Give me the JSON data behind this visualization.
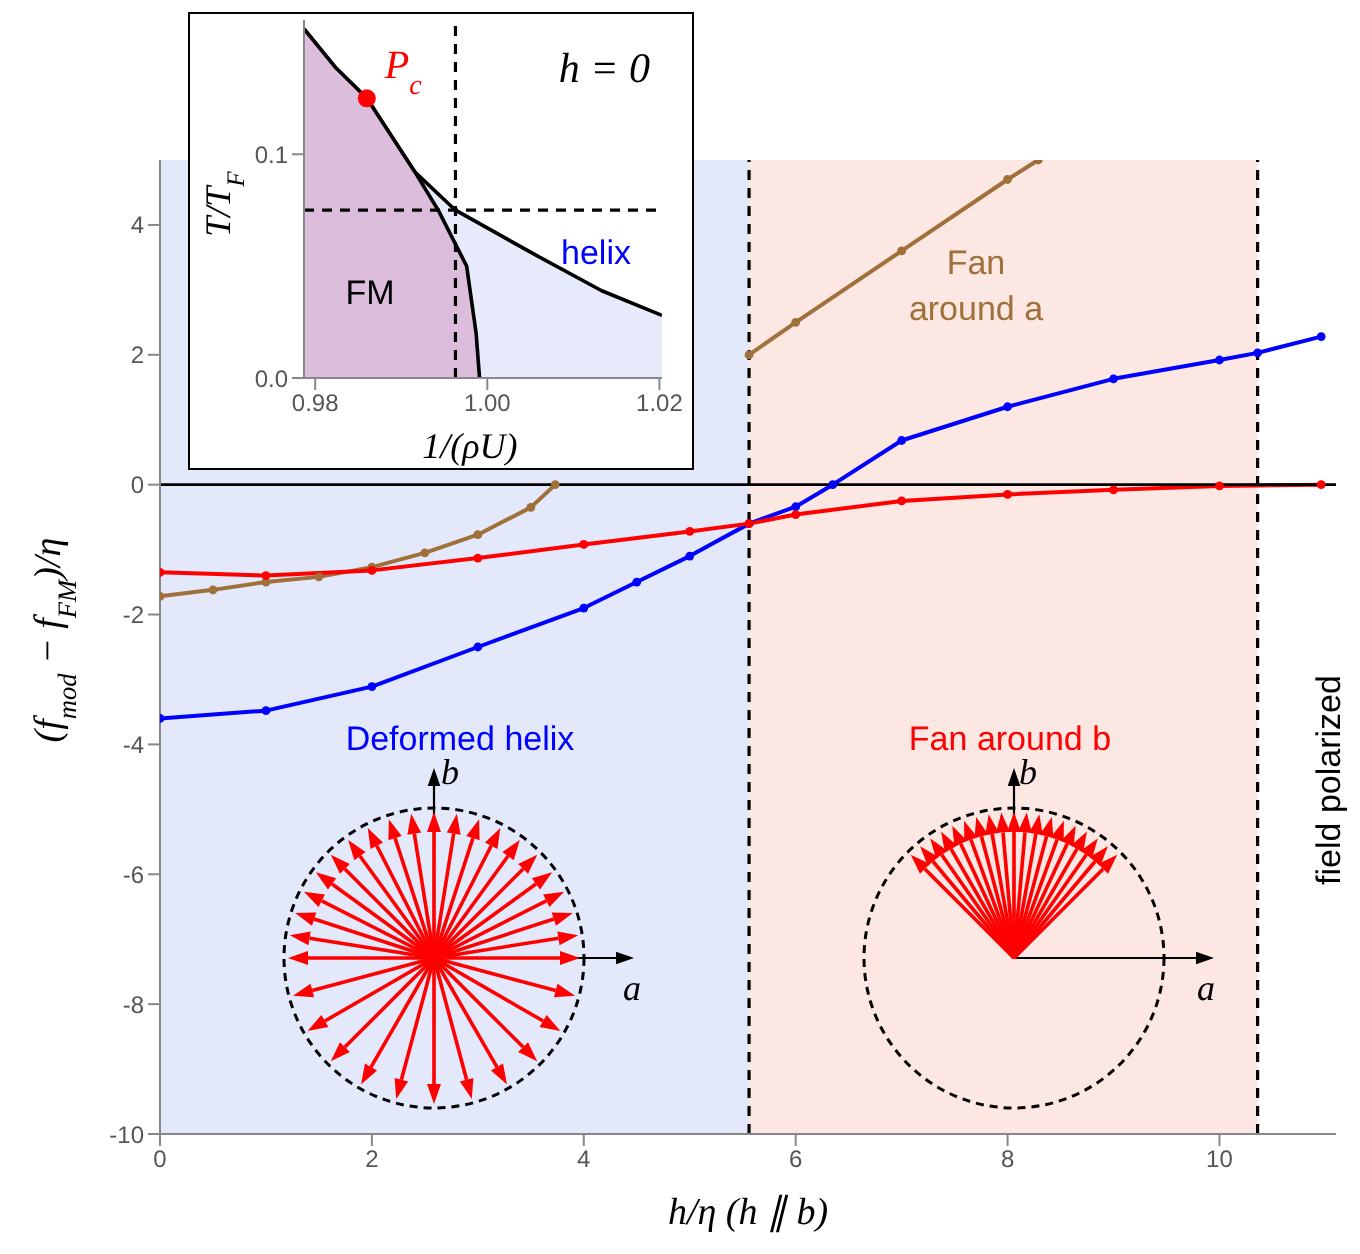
{
  "chart_data": [
    {
      "type": "line",
      "xlabel": "h/η (h ∥ b)",
      "ylabel": "(f$_{mod}$ − f$_{FM}$)/η",
      "xlim": [
        0,
        11.1
      ],
      "ylim": [
        -10,
        5
      ],
      "xticks": [
        0,
        2,
        4,
        6,
        8,
        10
      ],
      "yticks": [
        -10,
        -8,
        -6,
        -4,
        -2,
        0,
        2,
        4
      ],
      "grid": false,
      "legend": false,
      "marker": "circle",
      "series": [
        {
          "name": "Fan around a",
          "color": "#a0703a",
          "x": [
            0,
            0.5,
            1,
            1.5,
            2,
            2.5,
            3,
            3.5,
            3.73,
            4,
            4.5,
            5,
            5.56,
            6,
            7,
            8,
            8.29
          ],
          "values": [
            -1.72,
            -1.62,
            -1.5,
            -1.42,
            -1.27,
            -1.05,
            -0.77,
            -0.35,
            0,
            null,
            null,
            null,
            2.0,
            2.5,
            3.6,
            4.7,
            5
          ]
        },
        {
          "name": "Deformed helix",
          "color": "#0000ff",
          "x": [
            0,
            1,
            2,
            3,
            4,
            4.5,
            5,
            5.56,
            6,
            6.35,
            7,
            8,
            9,
            10,
            10.36,
            10.96
          ],
          "values": [
            -3.6,
            -3.48,
            -3.11,
            -2.5,
            -1.9,
            -1.5,
            -1.1,
            -0.6,
            -0.34,
            0,
            0.68,
            1.2,
            1.63,
            1.92,
            2.03,
            2.28
          ]
        },
        {
          "name": "Fan around b",
          "color": "#ff0000",
          "x": [
            0,
            1,
            2,
            3,
            4,
            5,
            5.56,
            6,
            7,
            8,
            9,
            10,
            10.96
          ],
          "values": [
            -1.35,
            -1.4,
            -1.32,
            -1.13,
            -0.92,
            -0.72,
            -0.6,
            -0.46,
            -0.25,
            -0.15,
            -0.08,
            -0.02,
            0
          ]
        }
      ],
      "bands": [
        {
          "axis": "x",
          "from": 0,
          "to": 5.56,
          "color": "#e3e8fb"
        },
        {
          "axis": "x",
          "from": 5.56,
          "to": 10.36,
          "color": "#fde7e3"
        }
      ],
      "ref_lines": [
        {
          "axis": "y",
          "value": 0,
          "color": "#000000",
          "line_style": "solid"
        },
        {
          "axis": "x",
          "value": 5.56,
          "color": "#000000",
          "line_style": "dashed"
        },
        {
          "axis": "x",
          "value": 10.36,
          "color": "#000000",
          "line_style": "dashed"
        }
      ],
      "annotations": [
        "field polarized",
        "b",
        "a",
        "b",
        "a"
      ]
    },
    {
      "type": "area",
      "xlabel": "1/(ρU)",
      "ylabel": "T/T$_{F}$",
      "xlim": [
        0.9787,
        1.0203
      ],
      "ylim": [
        0,
        0.16
      ],
      "xticks": [
        0.98,
        {
          "value": 1,
          "label": "1.00"
        },
        1.02
      ],
      "yticks": [
        {
          "value": 0,
          "label": "0.0"
        },
        {
          "value": 0.1,
          "label": "0.1"
        }
      ],
      "grid": false,
      "legend": false,
      "series": [
        {
          "name": "helix",
          "color": "#e6eafb",
          "x": [
            0.9787,
            0.9823,
            0.986,
            0.9916,
            0.9963,
            1.0056,
            1.0133,
            1.0203
          ],
          "values": [
            0.156,
            0.139,
            0.125,
            0.092,
            0.075,
            0.055,
            0.039,
            0.028
          ]
        },
        {
          "name": "FM",
          "color": "#dcbddc",
          "x": [
            0.9787,
            0.9823,
            0.986,
            0.9916,
            0.9943,
            0.9976,
            0.9987,
            0.9991
          ],
          "values": [
            0.156,
            0.139,
            0.125,
            0.092,
            0.075,
            0.05,
            0.02,
            0
          ]
        },
        {
          "type": "scatter",
          "color": "#ff0000",
          "x": [
            0.986
          ],
          "values": [
            0.125
          ]
        }
      ],
      "ref_lines": [
        {
          "axis": "x",
          "value": 0.9963,
          "color": "#000000",
          "line_style": "dashed"
        },
        {
          "axis": "y",
          "value": 0.075,
          "color": "#000000",
          "line_style": "dashed"
        }
      ],
      "annotations": [
        "h = 0",
        {
          "text": "P$_{c}$",
          "x": 0.986,
          "y": 0.125
        }
      ]
    }
  ]
}
